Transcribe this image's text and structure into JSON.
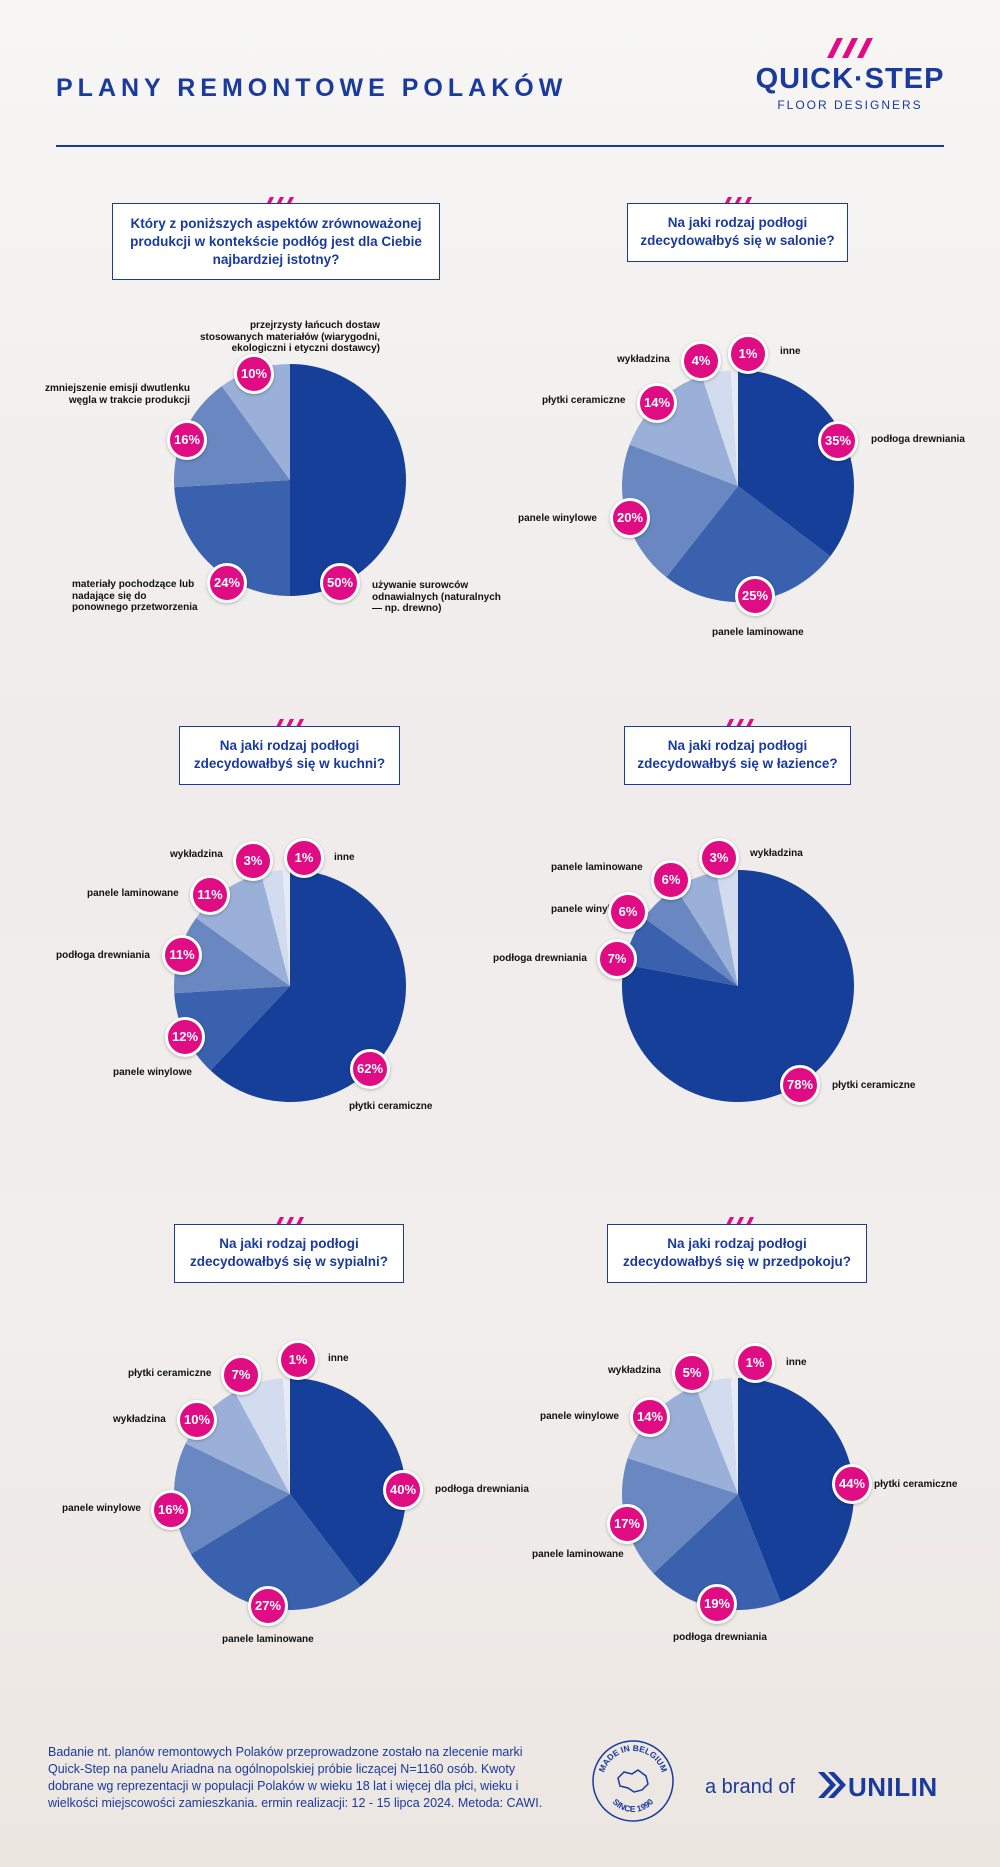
{
  "header": {
    "title": "PLANY REMONTOWE POLAKÓW",
    "brand_name": "QUICK·STEP",
    "brand_tagline": "FLOOR DESIGNERS"
  },
  "footer": {
    "note": "Badanie nt. planów remontowych Polaków przeprowadzone zostało na zlecenie marki Quick-Step na panelu Ariadna na ogólnopolskiej próbie liczącej N=1160 osób. Kwoty dobrane wg reprezentacji w populacji Polaków w wieku 18 lat i więcej dla płci, wieku i wielkości miejscowości zamieszkania. ermin realizacji: 12 - 15 lipca 2024. Metoda: CAWI.",
    "seal_text_top": "MADE IN BELGIUM",
    "seal_text_bottom": "SINCE 1990",
    "brand_of": "a brand of",
    "parent_brand": "UNILIN"
  },
  "colors": {
    "accent": "#df0c83",
    "brand_blue": "#1a3a9c",
    "slice_1": "#163f99",
    "slice_2": "#3a61ad",
    "slice_3": "#6988c2",
    "slice_4": "#9bb0d8",
    "slice_5": "#d2dcee"
  },
  "chart_data": [
    {
      "type": "pie",
      "title": "Który z poniższych aspektów zrównoważonej produkcji w kontekście podłóg jest dla Ciebie najbardziej istotny?",
      "categories": [
        "używanie surowców odnawialnych (naturalnych — np. drewno)",
        "materiały pochodzące lub nadające się do ponownego przetworzenia",
        "zmniejszenie emisji dwutlenku węgla w trakcie produkcji",
        "przejrzysty łańcuch dostaw stosowanych materiałów (wiarygodni, ekologiczni i etyczni dostawcy)"
      ],
      "values": [
        50,
        24,
        16,
        10
      ],
      "value_labels": [
        "50%",
        "24%",
        "16%",
        "10%"
      ]
    },
    {
      "type": "pie",
      "title": "Na jaki rodzaj podłogi zdecydowałbyś się w salonie?",
      "categories": [
        "podłoga drewniania",
        "panele laminowane",
        "panele winylowe",
        "płytki ceramiczne",
        "wykładzina",
        "inne"
      ],
      "values": [
        35,
        25,
        20,
        14,
        4,
        1
      ],
      "value_labels": [
        "35%",
        "25%",
        "20%",
        "14%",
        "4%",
        "1%"
      ]
    },
    {
      "type": "pie",
      "title": "Na jaki rodzaj podłogi zdecydowałbyś się w kuchni?",
      "categories": [
        "płytki ceramiczne",
        "panele winylowe",
        "podłoga drewniania",
        "panele laminowane",
        "wykładzina",
        "inne"
      ],
      "values": [
        62,
        12,
        11,
        11,
        3,
        1
      ],
      "value_labels": [
        "62%",
        "12%",
        "11%",
        "11%",
        "3%",
        "1%"
      ]
    },
    {
      "type": "pie",
      "title": "Na jaki rodzaj podłogi zdecydowałbyś się w łazience?",
      "categories": [
        "płytki ceramiczne",
        "podłoga drewniania",
        "panele winylowe",
        "panele laminowane",
        "wykładzina"
      ],
      "values": [
        78,
        7,
        6,
        6,
        3
      ],
      "value_labels": [
        "78%",
        "7%",
        "6%",
        "6%",
        "3%"
      ]
    },
    {
      "type": "pie",
      "title": "Na jaki rodzaj podłogi zdecydowałbyś się w sypialni?",
      "categories": [
        "podłoga drewniania",
        "panele laminowane",
        "panele winylowe",
        "wykładzina",
        "płytki ceramiczne",
        "inne"
      ],
      "values": [
        40,
        27,
        16,
        10,
        7,
        1
      ],
      "value_labels": [
        "40%",
        "27%",
        "16%",
        "10%",
        "7%",
        "1%"
      ]
    },
    {
      "type": "pie",
      "title": "Na jaki rodzaj podłogi zdecydowałbyś się w przedpokoju?",
      "categories": [
        "płytki ceramiczne",
        "podłoga drewniania",
        "panele laminowane",
        "panele winylowe",
        "wykładzina",
        "inne"
      ],
      "values": [
        44,
        19,
        17,
        14,
        5,
        1
      ],
      "value_labels": [
        "44%",
        "19%",
        "17%",
        "14%",
        "5%",
        "1%"
      ]
    }
  ]
}
